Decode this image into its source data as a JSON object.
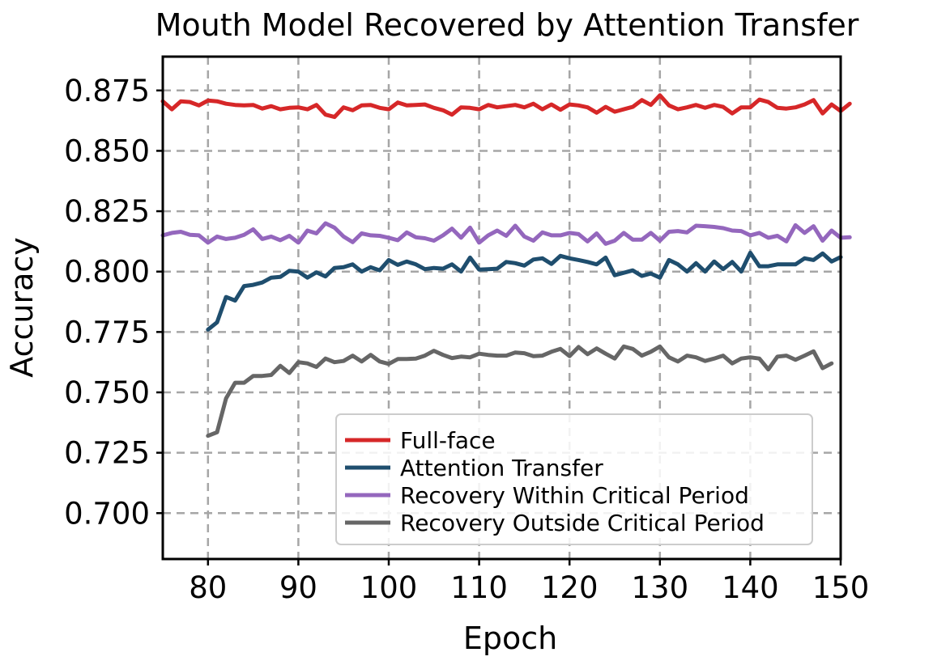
{
  "chart_data": {
    "type": "line",
    "title": "Mouth Model Recovered by Attention Transfer",
    "xlabel": "Epoch",
    "ylabel": "Accuracy",
    "xlim": [
      75,
      150
    ],
    "ylim": [
      0.681,
      0.889
    ],
    "x_ticks": [
      80,
      90,
      100,
      110,
      120,
      130,
      140,
      150
    ],
    "y_ticks": [
      0.7,
      0.725,
      0.75,
      0.775,
      0.8,
      0.825,
      0.85,
      0.875
    ],
    "x_tick_labels": [
      "80",
      "90",
      "100",
      "110",
      "120",
      "130",
      "140",
      "150"
    ],
    "y_tick_labels": [
      "0.700",
      "0.725",
      "0.750",
      "0.775",
      "0.800",
      "0.825",
      "0.850",
      "0.875"
    ],
    "grid": true,
    "legend_position": "lower-right",
    "series": [
      {
        "name": "Full-face",
        "color": "#d62728",
        "x_start": 75,
        "values": [
          0.8705,
          0.8672,
          0.8705,
          0.8702,
          0.8688,
          0.8708,
          0.8705,
          0.8695,
          0.869,
          0.8688,
          0.869,
          0.8675,
          0.8685,
          0.8672,
          0.8678,
          0.868,
          0.8672,
          0.869,
          0.865,
          0.864,
          0.868,
          0.8668,
          0.8688,
          0.869,
          0.8678,
          0.8672,
          0.87,
          0.8688,
          0.869,
          0.8692,
          0.8678,
          0.8668,
          0.865,
          0.868,
          0.8678,
          0.8672,
          0.869,
          0.868,
          0.8685,
          0.869,
          0.868,
          0.8695,
          0.8672,
          0.8692,
          0.867,
          0.8692,
          0.8688,
          0.868,
          0.8658,
          0.8682,
          0.8662,
          0.8672,
          0.8682,
          0.871,
          0.869,
          0.873,
          0.8688,
          0.8672,
          0.868,
          0.869,
          0.8678,
          0.869,
          0.8682,
          0.8655,
          0.868,
          0.868,
          0.8712,
          0.8702,
          0.8678,
          0.8675,
          0.868,
          0.8692,
          0.871,
          0.8655,
          0.8692,
          0.8665,
          0.8695
        ]
      },
      {
        "name": "Attention Transfer",
        "color": "#1f4e6e",
        "x_start": 80,
        "values": [
          0.776,
          0.779,
          0.7895,
          0.788,
          0.794,
          0.7945,
          0.7955,
          0.7975,
          0.7978,
          0.8003,
          0.8,
          0.7975,
          0.7997,
          0.798,
          0.8015,
          0.8018,
          0.803,
          0.8,
          0.8018,
          0.8005,
          0.8048,
          0.8028,
          0.8042,
          0.803,
          0.801,
          0.8015,
          0.8012,
          0.803,
          0.8,
          0.8058,
          0.8008,
          0.801,
          0.8012,
          0.804,
          0.8035,
          0.8025,
          0.805,
          0.8055,
          0.8032,
          0.8065,
          0.8055,
          0.8048,
          0.804,
          0.803,
          0.8058,
          0.7985,
          0.7995,
          0.8005,
          0.7982,
          0.7992,
          0.7975,
          0.8048,
          0.803,
          0.8,
          0.8035,
          0.8,
          0.8042,
          0.801,
          0.804,
          0.8,
          0.8078,
          0.8022,
          0.8022,
          0.803,
          0.803,
          0.803,
          0.8055,
          0.8048,
          0.8075,
          0.8042,
          0.806
        ]
      },
      {
        "name": "Recovery Within Critical Period",
        "color": "#9467bd",
        "x_start": 75,
        "values": [
          0.815,
          0.816,
          0.8165,
          0.8152,
          0.815,
          0.812,
          0.8145,
          0.8135,
          0.814,
          0.8152,
          0.8175,
          0.8135,
          0.8145,
          0.813,
          0.8148,
          0.812,
          0.817,
          0.8158,
          0.82,
          0.8182,
          0.8145,
          0.8122,
          0.8158,
          0.815,
          0.8148,
          0.814,
          0.813,
          0.8162,
          0.8142,
          0.8138,
          0.8128,
          0.815,
          0.8178,
          0.814,
          0.8182,
          0.812,
          0.815,
          0.817,
          0.8148,
          0.819,
          0.8145,
          0.8128,
          0.8162,
          0.815,
          0.815,
          0.816,
          0.8155,
          0.8125,
          0.8158,
          0.8115,
          0.8128,
          0.816,
          0.8132,
          0.8132,
          0.816,
          0.8128,
          0.8165,
          0.8168,
          0.8162,
          0.819,
          0.8188,
          0.8185,
          0.818,
          0.817,
          0.8168,
          0.815,
          0.816,
          0.814,
          0.8148,
          0.8125,
          0.8192,
          0.816,
          0.8188,
          0.8128,
          0.817,
          0.814,
          0.8142
        ]
      },
      {
        "name": "Recovery Outside Critical Period",
        "color": "#666666",
        "x_start": 80,
        "values": [
          0.732,
          0.7335,
          0.7475,
          0.754,
          0.754,
          0.7568,
          0.7568,
          0.7572,
          0.761,
          0.758,
          0.7625,
          0.762,
          0.7605,
          0.764,
          0.7625,
          0.763,
          0.7652,
          0.7628,
          0.7655,
          0.7628,
          0.7618,
          0.7638,
          0.7638,
          0.764,
          0.7652,
          0.7672,
          0.7655,
          0.7642,
          0.7648,
          0.7645,
          0.766,
          0.7655,
          0.7652,
          0.7652,
          0.7665,
          0.7662,
          0.765,
          0.7652,
          0.7668,
          0.768,
          0.765,
          0.7688,
          0.7658,
          0.7682,
          0.766,
          0.764,
          0.769,
          0.768,
          0.7652,
          0.7668,
          0.769,
          0.7645,
          0.7628,
          0.7652,
          0.7645,
          0.763,
          0.764,
          0.7652,
          0.762,
          0.764,
          0.7645,
          0.764,
          0.7595,
          0.7648,
          0.7652,
          0.7635,
          0.7652,
          0.767,
          0.76,
          0.762
        ]
      }
    ]
  }
}
